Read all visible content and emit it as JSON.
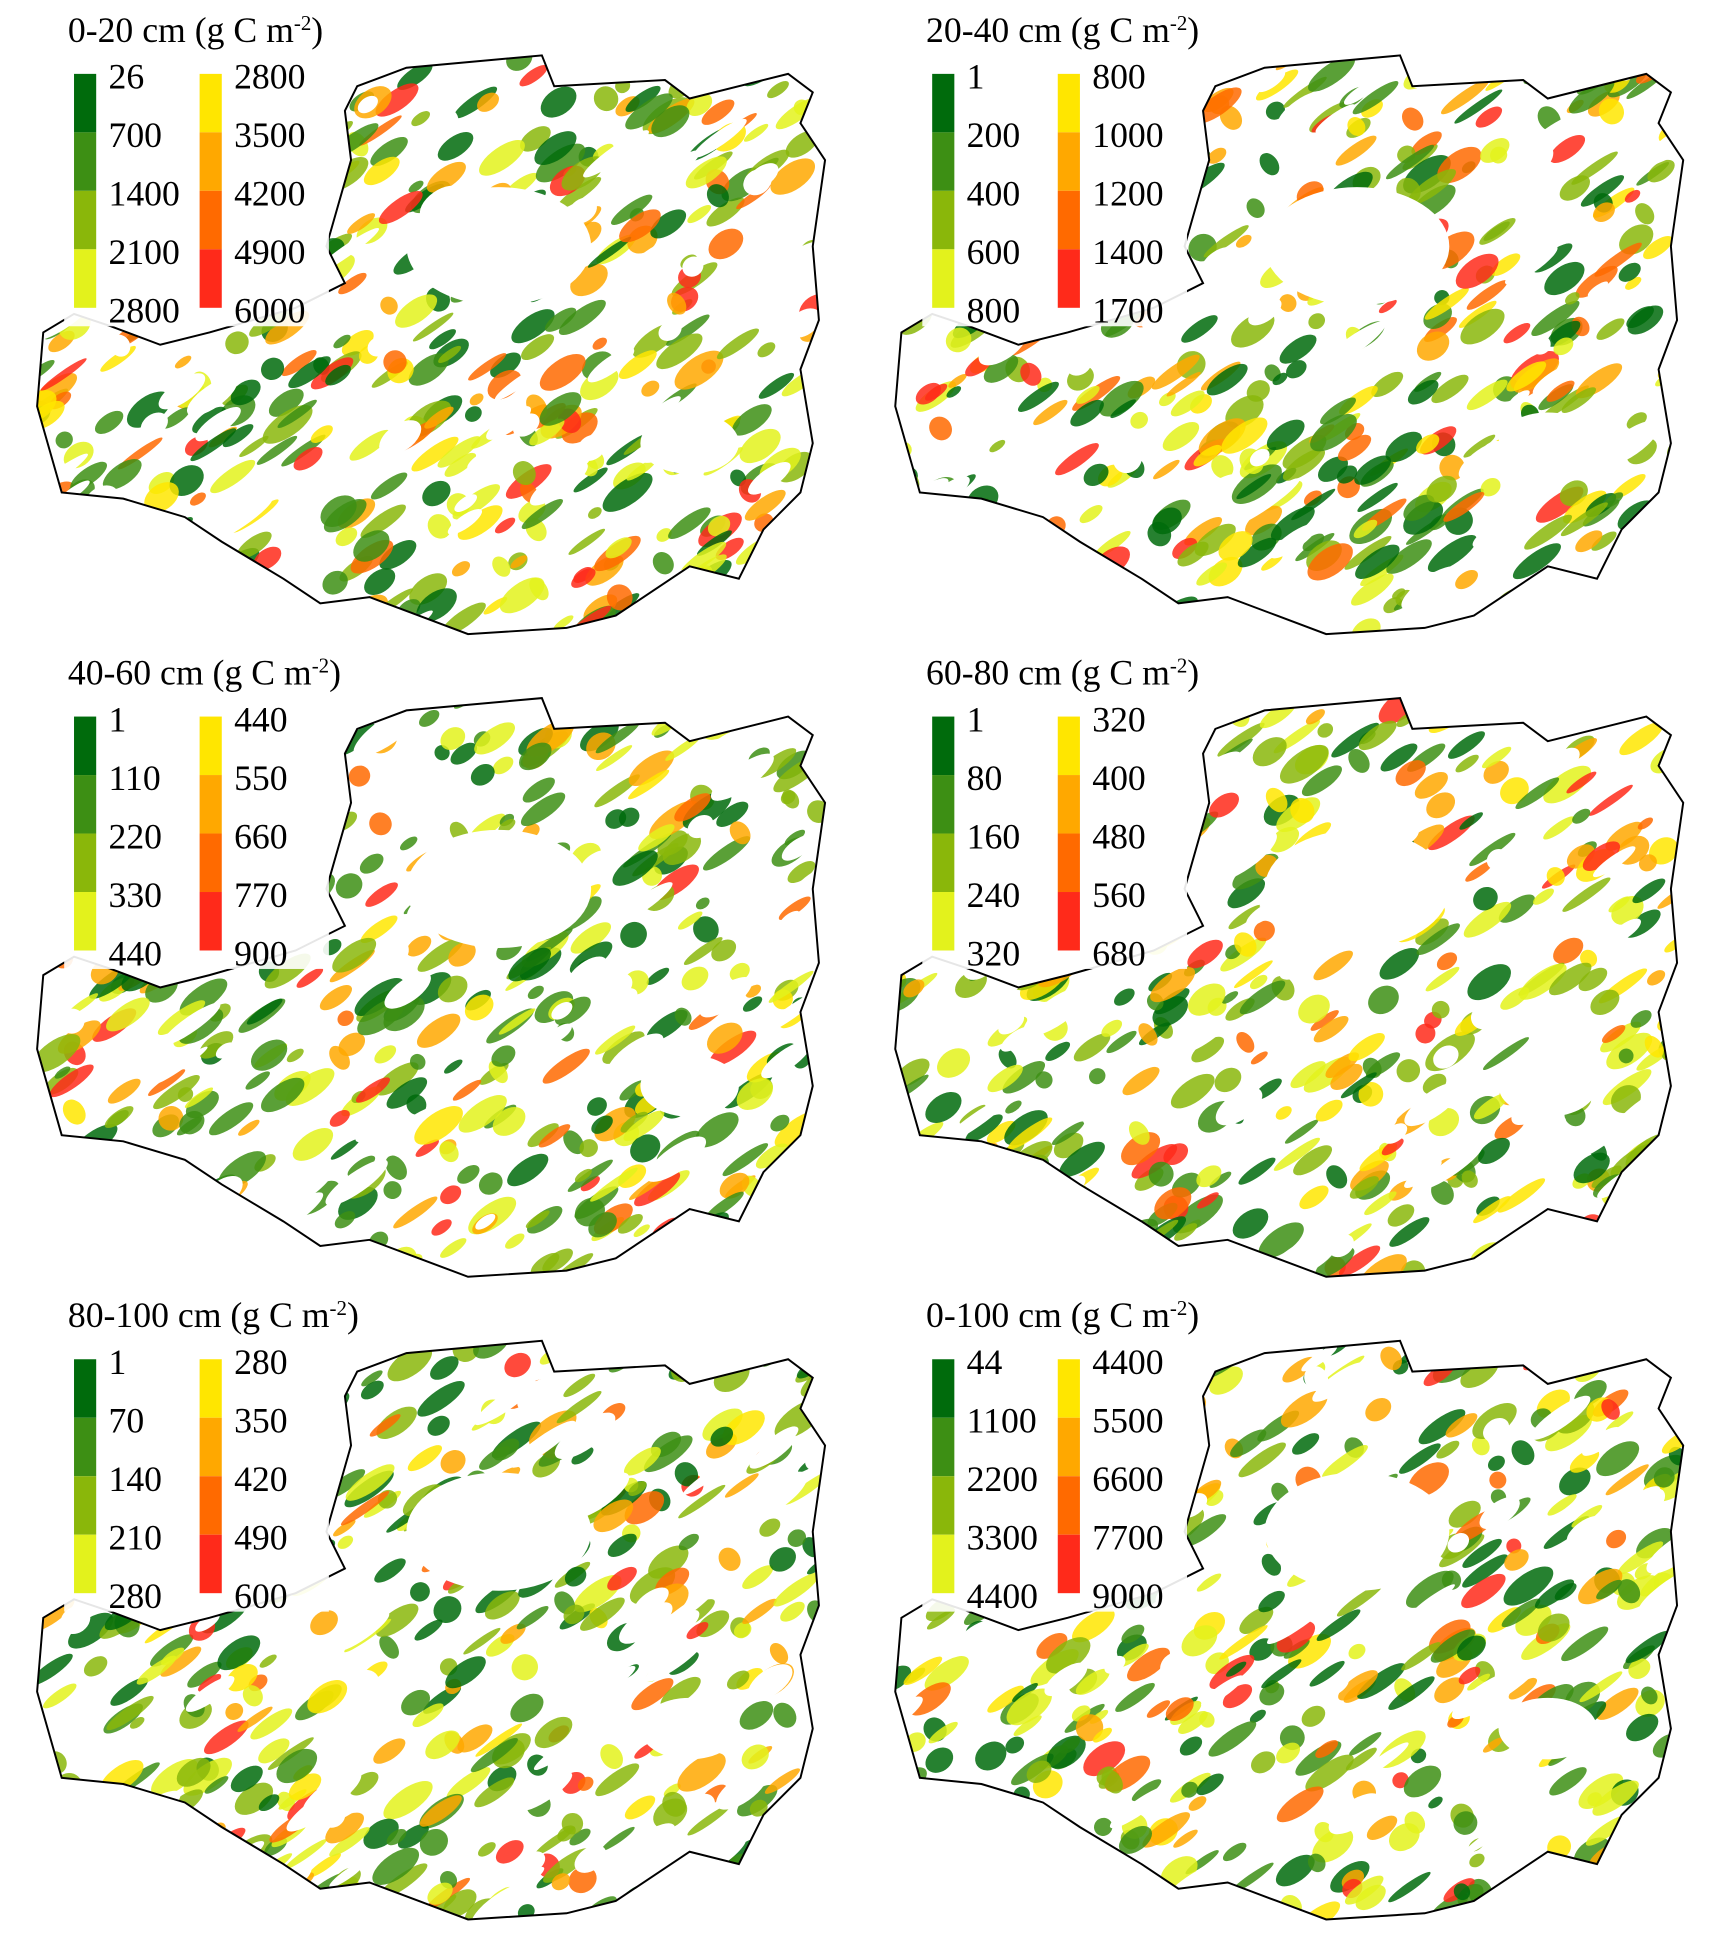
{
  "panels": [
    {
      "title": {
        "text": "0-20 cm (g C m",
        "sup": "-2",
        "end": ")"
      },
      "legend_left": [
        "26",
        "700",
        "1400",
        "2100",
        "2800"
      ],
      "legend_right": [
        "2800",
        "3500",
        "4200",
        "4900",
        "6000"
      ]
    },
    {
      "title": {
        "text": "20-40 cm (g C m",
        "sup": "-2",
        "end": ")"
      },
      "legend_left": [
        "1",
        "200",
        "400",
        "600",
        "800"
      ],
      "legend_right": [
        "800",
        "1000",
        "1200",
        "1400",
        "1700"
      ]
    },
    {
      "title": {
        "text": "40-60 cm (g C m",
        "sup": "-2",
        "end": ")"
      },
      "legend_left": [
        "1",
        "110",
        "220",
        "330",
        "440"
      ],
      "legend_right": [
        "440",
        "550",
        "660",
        "770",
        "900"
      ]
    },
    {
      "title": {
        "text": "60-80 cm (g C m",
        "sup": "-2",
        "end": ")"
      },
      "legend_left": [
        "1",
        "80",
        "160",
        "240",
        "320"
      ],
      "legend_right": [
        "320",
        "400",
        "480",
        "560",
        "680"
      ]
    },
    {
      "title": {
        "text": "80-100 cm (g C m",
        "sup": "-2",
        "end": ")"
      },
      "legend_left": [
        "1",
        "70",
        "140",
        "210",
        "280"
      ],
      "legend_right": [
        "280",
        "350",
        "420",
        "490",
        "600"
      ]
    },
    {
      "title": {
        "text": "0-100 cm (g C m",
        "sup": "-2",
        "end": ")"
      },
      "legend_left": [
        "44",
        "1100",
        "2200",
        "3300",
        "4400"
      ],
      "legend_right": [
        "4400",
        "5500",
        "6600",
        "7700",
        "9000"
      ]
    }
  ],
  "legend_colors": {
    "left": [
      "#006b0c",
      "#3d8f14",
      "#8ab70a",
      "#e3f21c"
    ],
    "right": [
      "#ffe600",
      "#ffa800",
      "#ff6a00",
      "#ff2a1a"
    ]
  }
}
